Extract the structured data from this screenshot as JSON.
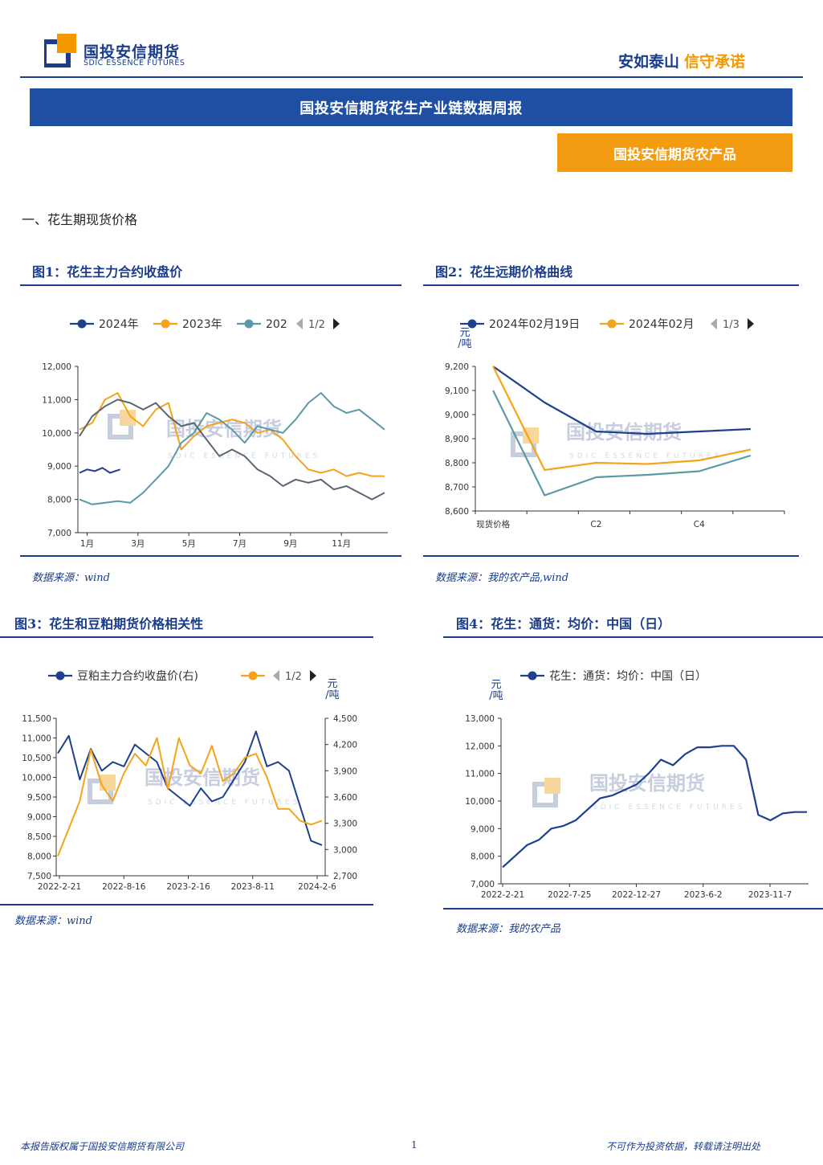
{
  "header": {
    "logo_cn": "国投安信期货",
    "logo_en": "SDIC ESSENCE FUTURES",
    "slogan_part1": "安如泰山",
    "slogan_part2": "信守承诺",
    "report_title": "国投安信期货花生产业链数据周报",
    "report_subtitle": "国投安信期货农产品"
  },
  "section": {
    "heading": "一、花生期现货价格"
  },
  "watermark": {
    "cn": "国投安信期货",
    "en": "SDIC ESSENCE FUTURES"
  },
  "colors": {
    "brand_blue": "#1a3c8b",
    "accent_orange": "#f39800",
    "series_navy": "#1f3f8f",
    "series_orange": "#f5a31a",
    "series_teal": "#5a9aa8",
    "series_slate": "#5a6673"
  },
  "figures": {
    "fig1": {
      "title": "图1：花生主力合约收盘价",
      "source": "数据来源：wind"
    },
    "fig2": {
      "title": "图2：花生远期价格曲线",
      "source": "数据来源：我的农产品,wind"
    },
    "fig3": {
      "title": "图3：花生和豆粕期货价格相关性",
      "source": "数据来源：wind"
    },
    "fig4": {
      "title": "图4：花生：通货：均价：中国（日）",
      "source": "数据来源：我的农产品"
    }
  },
  "chart_data": [
    {
      "type": "line",
      "legend": [
        "2024年",
        "2023年",
        "202"
      ],
      "legend_pager": "1/2",
      "x_tick_labels": [
        "1月",
        "3月",
        "5月",
        "7月",
        "9月",
        "11月"
      ],
      "y_tick_labels": [
        "12,000",
        "11,000",
        "10,000",
        "9,000",
        "8,000",
        "7,000"
      ],
      "ylim": [
        7000,
        12000
      ],
      "x_months": [
        0,
        0.5,
        1,
        1.5,
        2,
        2.5,
        3,
        3.5,
        4,
        4.5,
        5,
        5.5,
        6,
        6.5,
        7,
        7.5,
        8,
        8.5,
        9,
        9.5,
        10,
        10.5,
        11,
        11.5,
        12
      ],
      "series": [
        {
          "name": "2024年",
          "x_months": [
            0,
            0.3,
            0.6,
            0.9,
            1.2,
            1.6
          ],
          "values": [
            8800,
            8900,
            8850,
            8950,
            8800,
            8900
          ]
        },
        {
          "name": "2023年",
          "values": [
            10100,
            10300,
            11000,
            11200,
            10500,
            10200,
            10700,
            10900,
            9500,
            9900,
            10200,
            10300,
            10400,
            10300,
            10000,
            10100,
            9800,
            9300,
            8900,
            8800,
            8900,
            8700,
            8800,
            8700,
            8700
          ]
        },
        {
          "values": [
            8000,
            7850,
            7900,
            7950,
            7900,
            8200,
            8600,
            9000,
            9700,
            10000,
            10600,
            10400,
            10100,
            9700,
            10200,
            10100,
            10000,
            10400,
            10900,
            11200,
            10800,
            10600,
            10700,
            10400,
            10100
          ]
        },
        {
          "values": [
            9900,
            10500,
            10800,
            11000,
            10900,
            10700,
            10900,
            10500,
            10200,
            10300,
            9800,
            9300,
            9500,
            9300,
            8900,
            8700,
            8400,
            8600,
            8500,
            8600,
            8300,
            8400,
            8200,
            8000,
            8200
          ]
        }
      ]
    },
    {
      "type": "line",
      "legend": [
        "2024年02月19日",
        "2024年02月"
      ],
      "legend_pager": "1/3",
      "unit": "元/吨",
      "categories": [
        "现货价格",
        "",
        "C2",
        "",
        "C4",
        ""
      ],
      "x_tick_labels": [
        "现货价格",
        "C2",
        "C4"
      ],
      "y_tick_labels": [
        "9,200",
        "9,100",
        "9,000",
        "8,900",
        "8,800",
        "8,700",
        "8,600"
      ],
      "ylim": [
        8600,
        9200
      ],
      "series": [
        {
          "name": "2024年02月19日",
          "values": [
            9200,
            9050,
            8930,
            8920,
            8930,
            8940
          ]
        },
        {
          "name": "2024年02月",
          "values": [
            9200,
            8770,
            8800,
            8795,
            8810,
            8855
          ]
        },
        {
          "values": [
            9100,
            8665,
            8740,
            8750,
            8765,
            8830
          ]
        }
      ]
    },
    {
      "type": "line",
      "legend": [
        "豆粕主力合约收盘价(右)",
        ""
      ],
      "legend_pager": "1/2",
      "unit": "元/吨",
      "x_tick_labels": [
        "2022-2-21",
        "2022-8-16",
        "2023-2-16",
        "2023-8-11",
        "2024-2-6"
      ],
      "y_left_tick_labels": [
        "11,500",
        "11,000",
        "10,500",
        "10,000",
        "9,500",
        "9,000",
        "8,500",
        "8,000",
        "7,500"
      ],
      "y_right_tick_labels": [
        "4,500",
        "4,200",
        "3,900",
        "3,600",
        "3,300",
        "3,000",
        "2,700"
      ],
      "ylim_left": [
        7500,
        11500
      ],
      "ylim_right": [
        2700,
        4500
      ],
      "series": [
        {
          "name": "豆粕主力合约收盘价(右)",
          "axis": "right",
          "values": [
            4100,
            4300,
            3800,
            4150,
            3900,
            4000,
            3950,
            4200,
            4100,
            4000,
            3700,
            3600,
            3500,
            3700,
            3550,
            3600,
            3800,
            4000,
            4350,
            3950,
            4000,
            3900,
            3500,
            3100,
            3050
          ]
        },
        {
          "name": "",
          "axis": "left",
          "values": [
            8000,
            8700,
            9400,
            10700,
            9800,
            9400,
            10100,
            10600,
            10300,
            11000,
            9700,
            11000,
            10300,
            10100,
            10800,
            9900,
            10100,
            10500,
            10600,
            10000,
            9200,
            9200,
            8900,
            8800,
            8900
          ]
        }
      ]
    },
    {
      "type": "line",
      "legend": [
        "花生：通货：均价：中国（日）"
      ],
      "unit": "元/吨",
      "x_tick_labels": [
        "2022-2-21",
        "2022-7-25",
        "2022-12-27",
        "2023-6-2",
        "2023-11-7"
      ],
      "y_tick_labels": [
        "13,000",
        "12,000",
        "11,000",
        "10,000",
        "9,000",
        "8,000",
        "7,000"
      ],
      "ylim": [
        7000,
        13000
      ],
      "series": [
        {
          "name": "花生：通货：均价：中国（日）",
          "values": [
            7600,
            8000,
            8400,
            8600,
            9000,
            9100,
            9300,
            9700,
            10100,
            10200,
            10400,
            10600,
            11000,
            11500,
            11300,
            11700,
            11950,
            11950,
            12000,
            12000,
            11500,
            9500,
            9300,
            9550,
            9600,
            9600
          ]
        }
      ]
    }
  ],
  "footer": {
    "left": "本报告版权属于国投安信期货有限公司",
    "page": "1",
    "right": "不可作为投资依据，转载请注明出处"
  }
}
